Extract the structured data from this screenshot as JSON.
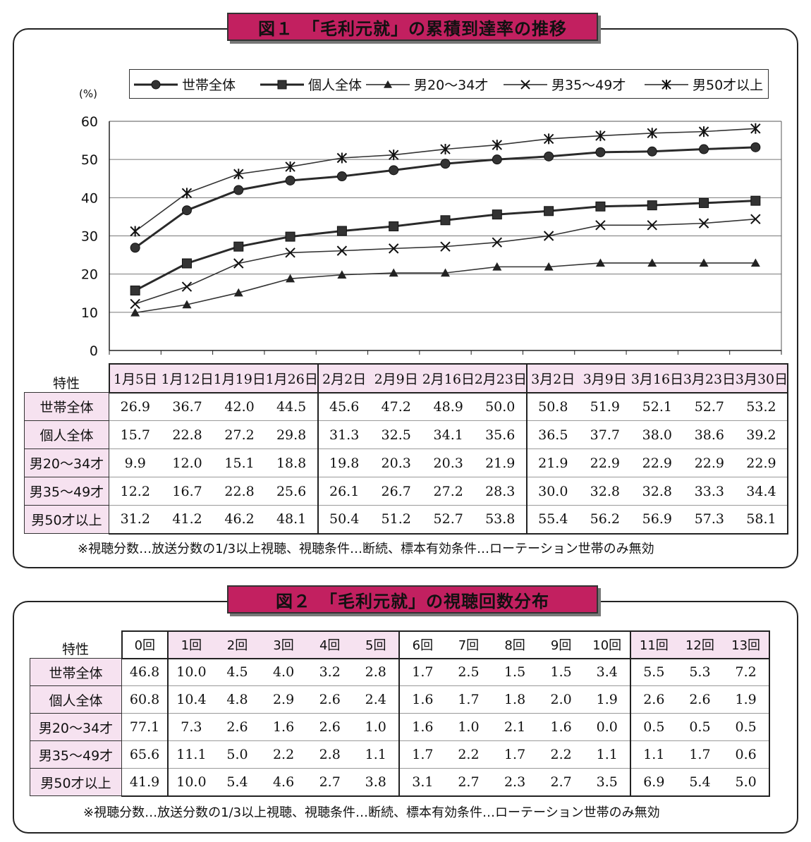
{
  "figure1": {
    "title": "図１　「毛利元就」の累積到達率の推移",
    "unit_label": "(%)",
    "row_header": "特性",
    "note": "※視聴分数…放送分数の1/3以上視聴、視聴条件…断続、標本有効条件…ローテーション世帯のみ無効"
  },
  "figure2": {
    "title": "図２　「毛利元就」の視聴回数分布",
    "row_header": "特性",
    "note": "※視聴分数…放送分数の1/3以上視聴、視聴条件…断続、標本有効条件…ローテーション世帯のみ無効",
    "columns": [
      "0回",
      "1回",
      "2回",
      "3回",
      "4回",
      "5回",
      "6回",
      "7回",
      "8回",
      "9回",
      "10回",
      "11回",
      "12回",
      "13回"
    ],
    "rows": [
      {
        "label": "世帯全体",
        "values": [
          "46.8",
          "10.0",
          "4.5",
          "4.0",
          "3.2",
          "2.8",
          "1.7",
          "2.5",
          "1.5",
          "1.5",
          "3.4",
          "5.5",
          "5.3",
          "7.2"
        ]
      },
      {
        "label": "個人全体",
        "values": [
          "60.8",
          "10.4",
          "4.8",
          "2.9",
          "2.6",
          "2.4",
          "1.6",
          "1.7",
          "1.8",
          "2.0",
          "1.9",
          "2.6",
          "2.6",
          "1.9"
        ]
      },
      {
        "label": "男20～34才",
        "values": [
          "77.1",
          "7.3",
          "2.6",
          "1.6",
          "2.6",
          "1.0",
          "1.6",
          "1.0",
          "2.1",
          "1.6",
          "0.0",
          "0.5",
          "0.5",
          "0.5"
        ]
      },
      {
        "label": "男35～49才",
        "values": [
          "65.6",
          "11.1",
          "5.0",
          "2.2",
          "2.8",
          "1.1",
          "1.7",
          "2.2",
          "1.7",
          "2.2",
          "1.1",
          "1.1",
          "1.7",
          "0.6"
        ]
      },
      {
        "label": "男50才以上",
        "values": [
          "41.9",
          "10.0",
          "5.4",
          "4.6",
          "2.7",
          "3.8",
          "3.1",
          "2.7",
          "2.3",
          "2.7",
          "3.5",
          "6.9",
          "5.4",
          "5.0"
        ]
      }
    ]
  },
  "chart_data": {
    "type": "line",
    "title": "図１　「毛利元就」の累積到達率の推移",
    "ylabel": "(%)",
    "ylim": [
      0,
      60
    ],
    "yticks": [
      0,
      10,
      20,
      30,
      40,
      50,
      60
    ],
    "grid": true,
    "legend_position": "top",
    "categories": [
      "1月5日",
      "1月12日",
      "1月19日",
      "1月26日",
      "2月2日",
      "2月9日",
      "2月16日",
      "2月23日",
      "3月2日",
      "3月9日",
      "3月16日",
      "3月23日",
      "3月30日"
    ],
    "series": [
      {
        "name": "世帯全体",
        "marker": "circle",
        "values": [
          26.9,
          36.7,
          42.0,
          44.5,
          45.6,
          47.2,
          48.9,
          50.0,
          50.8,
          51.9,
          52.1,
          52.7,
          53.2
        ]
      },
      {
        "name": "個人全体",
        "marker": "square",
        "values": [
          15.7,
          22.8,
          27.2,
          29.8,
          31.3,
          32.5,
          34.1,
          35.6,
          36.5,
          37.7,
          38.0,
          38.6,
          39.2
        ]
      },
      {
        "name": "男20～34才",
        "marker": "triangle",
        "values": [
          9.9,
          12.0,
          15.1,
          18.8,
          19.8,
          20.3,
          20.3,
          21.9,
          21.9,
          22.9,
          22.9,
          22.9,
          22.9
        ]
      },
      {
        "name": "男35～49才",
        "marker": "x",
        "values": [
          12.2,
          16.7,
          22.8,
          25.6,
          26.1,
          26.7,
          27.2,
          28.3,
          30.0,
          32.8,
          32.8,
          33.3,
          34.4
        ]
      },
      {
        "name": "男50才以上",
        "marker": "asterisk",
        "values": [
          31.2,
          41.2,
          46.2,
          48.1,
          50.4,
          51.2,
          52.7,
          53.8,
          55.4,
          56.2,
          56.9,
          57.3,
          58.1
        ]
      }
    ],
    "table_values": [
      [
        "26.9",
        "36.7",
        "42.0",
        "44.5",
        "45.6",
        "47.2",
        "48.9",
        "50.0",
        "50.8",
        "51.9",
        "52.1",
        "52.7",
        "53.2"
      ],
      [
        "15.7",
        "22.8",
        "27.2",
        "29.8",
        "31.3",
        "32.5",
        "34.1",
        "35.6",
        "36.5",
        "37.7",
        "38.0",
        "38.6",
        "39.2"
      ],
      [
        "9.9",
        "12.0",
        "15.1",
        "18.8",
        "19.8",
        "20.3",
        "20.3",
        "21.9",
        "21.9",
        "22.9",
        "22.9",
        "22.9",
        "22.9"
      ],
      [
        "12.2",
        "16.7",
        "22.8",
        "25.6",
        "26.1",
        "26.7",
        "27.2",
        "28.3",
        "30.0",
        "32.8",
        "32.8",
        "33.3",
        "34.4"
      ],
      [
        "31.2",
        "41.2",
        "46.2",
        "48.1",
        "50.4",
        "51.2",
        "52.7",
        "53.8",
        "55.4",
        "56.2",
        "56.9",
        "57.3",
        "58.1"
      ]
    ]
  }
}
